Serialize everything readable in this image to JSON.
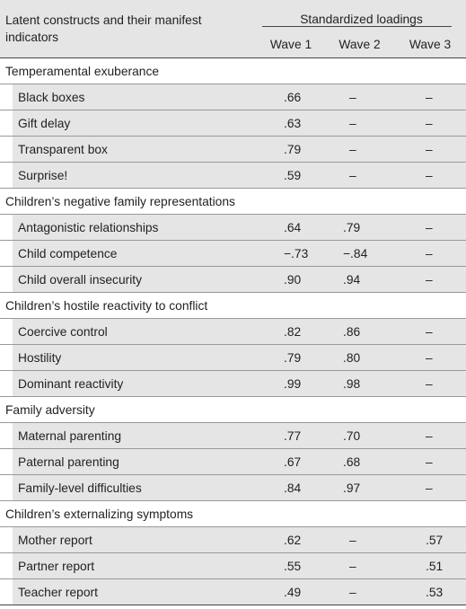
{
  "header": {
    "label_column": "Latent constructs and their manifest indicators",
    "group_label": "Standardized loadings",
    "waves": [
      "Wave 1",
      "Wave 2",
      "Wave 3"
    ]
  },
  "sections": [
    {
      "title": "Temperamental exuberance",
      "rows": [
        {
          "label": "Black boxes",
          "values": [
            ".66",
            "–",
            "–"
          ]
        },
        {
          "label": "Gift delay",
          "values": [
            ".63",
            "–",
            "–"
          ]
        },
        {
          "label": "Transparent box",
          "values": [
            ".79",
            "–",
            "–"
          ]
        },
        {
          "label": "Surprise!",
          "values": [
            ".59",
            "–",
            "–"
          ]
        }
      ]
    },
    {
      "title": "Children’s negative family representations",
      "rows": [
        {
          "label": "Antagonistic relationships",
          "values": [
            ".64",
            ".79",
            "–"
          ]
        },
        {
          "label": "Child competence",
          "values": [
            "−.73",
            "−.84",
            "–"
          ]
        },
        {
          "label": "Child overall insecurity",
          "values": [
            ".90",
            ".94",
            "–"
          ]
        }
      ]
    },
    {
      "title": "Children’s hostile reactivity to conflict",
      "rows": [
        {
          "label": "Coercive control",
          "values": [
            ".82",
            ".86",
            "–"
          ]
        },
        {
          "label": "Hostility",
          "values": [
            ".79",
            ".80",
            "–"
          ]
        },
        {
          "label": "Dominant reactivity",
          "values": [
            ".99",
            ".98",
            "–"
          ]
        }
      ]
    },
    {
      "title": "Family adversity",
      "rows": [
        {
          "label": "Maternal parenting",
          "values": [
            ".77",
            ".70",
            "–"
          ]
        },
        {
          "label": "Paternal parenting",
          "values": [
            ".67",
            ".68",
            "–"
          ]
        },
        {
          "label": "Family-level difficulties",
          "values": [
            ".84",
            ".97",
            "–"
          ]
        }
      ]
    },
    {
      "title": "Children’s externalizing symptoms",
      "rows": [
        {
          "label": "Mother report",
          "values": [
            ".62",
            "–",
            ".57"
          ]
        },
        {
          "label": "Partner report",
          "values": [
            ".55",
            "–",
            ".51"
          ]
        },
        {
          "label": "Teacher report",
          "values": [
            ".49",
            "–",
            ".53"
          ]
        }
      ]
    }
  ]
}
